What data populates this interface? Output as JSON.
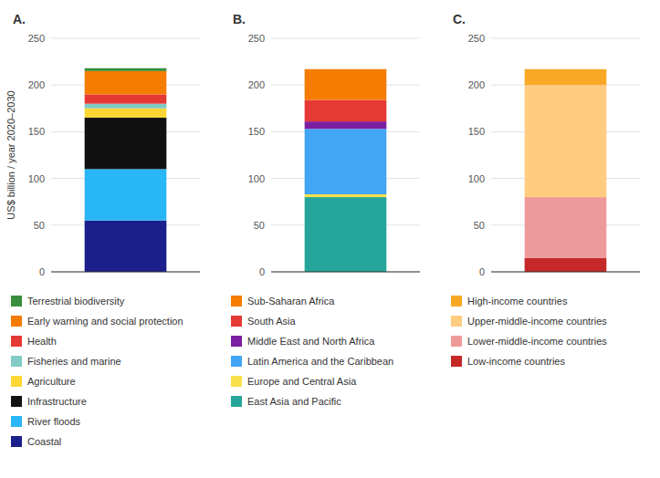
{
  "chart_data": [
    {
      "type": "bar",
      "stacked": true,
      "title": "A.",
      "ylabel": "US$ billion / year 2020–2030",
      "categories": [
        null
      ],
      "series": [
        {
          "name": "Coastal",
          "color": "#1a1f8c",
          "values": [
            55
          ]
        },
        {
          "name": "River floods",
          "color": "#29b6f6",
          "values": [
            55
          ]
        },
        {
          "name": "Infrastructure",
          "color": "#111111",
          "values": [
            55
          ]
        },
        {
          "name": "Agriculture",
          "color": "#fdd835",
          "values": [
            10
          ]
        },
        {
          "name": "Fisheries and marine",
          "color": "#80cbc4",
          "values": [
            5
          ]
        },
        {
          "name": "Health",
          "color": "#e53935",
          "values": [
            10
          ]
        },
        {
          "name": "Early warning and social protection",
          "color": "#f57c00",
          "values": [
            25
          ]
        },
        {
          "name": "Terrestrial biodiversity",
          "color": "#388e3c",
          "values": [
            3
          ]
        }
      ],
      "ylim": [
        0,
        250
      ],
      "yticks": [
        0,
        50,
        100,
        150,
        200,
        250
      ],
      "grid": true
    },
    {
      "type": "bar",
      "stacked": true,
      "title": "B.",
      "categories": [
        null
      ],
      "series": [
        {
          "name": "East Asia and Pacific",
          "color": "#26a69a",
          "values": [
            80
          ]
        },
        {
          "name": "Europe and Central Asia",
          "color": "#f9e04b",
          "values": [
            3
          ]
        },
        {
          "name": "Latin America and the Caribbean",
          "color": "#42a5f5",
          "values": [
            70
          ]
        },
        {
          "name": "Middle East and North Africa",
          "color": "#7b1fa2",
          "values": [
            8
          ]
        },
        {
          "name": "South Asia",
          "color": "#e53935",
          "values": [
            23
          ]
        },
        {
          "name": "Sub-Saharan Africa",
          "color": "#f57c00",
          "values": [
            33
          ]
        }
      ],
      "ylim": [
        0,
        250
      ],
      "yticks": [
        0,
        50,
        100,
        150,
        200,
        250
      ],
      "grid": true
    },
    {
      "type": "bar",
      "stacked": true,
      "title": "C.",
      "categories": [
        null
      ],
      "series": [
        {
          "name": "Low-income countries",
          "color": "#c62828",
          "values": [
            15
          ]
        },
        {
          "name": "Lower-middle-income countries",
          "color": "#ef9a9a",
          "values": [
            65
          ]
        },
        {
          "name": "Upper-middle-income countries",
          "color": "#ffcc80",
          "values": [
            120
          ]
        },
        {
          "name": "High-income countries",
          "color": "#f9a825",
          "values": [
            17
          ]
        }
      ],
      "ylim": [
        0,
        250
      ],
      "yticks": [
        0,
        50,
        100,
        150,
        200,
        250
      ],
      "grid": true
    }
  ]
}
